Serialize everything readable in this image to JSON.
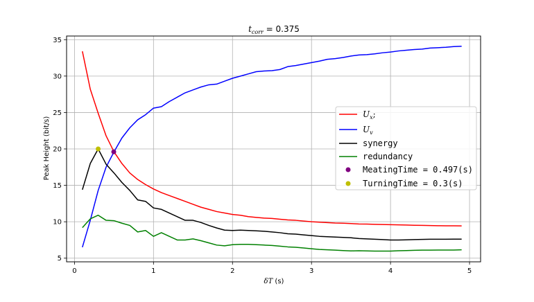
{
  "chart_data": {
    "type": "line",
    "title_prefix": "t",
    "title_sub": "corr",
    "title_suffix": " = 0.375",
    "xlabel_prefix": "δT",
    "xlabel_suffix": " (s)",
    "ylabel": "Peak Height (bit/s)",
    "xlim": [
      -0.1,
      5.14
    ],
    "ylim": [
      4.5,
      35.5
    ],
    "xticks": [
      0,
      1,
      2,
      3,
      4,
      5
    ],
    "yticks": [
      5,
      10,
      15,
      20,
      25,
      30,
      35
    ],
    "grid": true,
    "legend_position": "center-right",
    "x": [
      0.1,
      0.2,
      0.3,
      0.4,
      0.5,
      0.6,
      0.7,
      0.8,
      0.9,
      1.0,
      1.1,
      1.2,
      1.3,
      1.4,
      1.5,
      1.6,
      1.7,
      1.8,
      1.9,
      2.0,
      2.1,
      2.2,
      2.3,
      2.4,
      2.5,
      2.6,
      2.7,
      2.8,
      2.9,
      3.0,
      3.1,
      3.2,
      3.3,
      3.4,
      3.5,
      3.6,
      3.7,
      3.8,
      3.9,
      4.0,
      4.1,
      4.2,
      4.3,
      4.4,
      4.5,
      4.6,
      4.7,
      4.8,
      4.9
    ],
    "series": [
      {
        "name_base": "U",
        "name_sub": "x",
        "name_suffix": ";",
        "color": "#ff0000",
        "values": [
          33.4,
          28.2,
          24.9,
          21.8,
          19.6,
          18.0,
          16.7,
          15.8,
          15.1,
          14.5,
          14.0,
          13.6,
          13.2,
          12.8,
          12.4,
          12.0,
          11.7,
          11.4,
          11.2,
          11.0,
          10.9,
          10.7,
          10.6,
          10.5,
          10.45,
          10.35,
          10.25,
          10.2,
          10.1,
          10.0,
          9.95,
          9.88,
          9.82,
          9.8,
          9.75,
          9.7,
          9.68,
          9.65,
          9.62,
          9.6,
          9.57,
          9.55,
          9.52,
          9.5,
          9.48,
          9.46,
          9.45,
          9.44,
          9.43
        ]
      },
      {
        "name_base": "U",
        "name_sub": "v",
        "name_suffix": "",
        "color": "#0000ff",
        "values": [
          6.5,
          10.2,
          14.3,
          17.5,
          19.6,
          21.5,
          22.9,
          24.0,
          24.7,
          25.6,
          25.8,
          26.5,
          27.1,
          27.7,
          28.1,
          28.5,
          28.8,
          28.9,
          29.3,
          29.7,
          30.0,
          30.3,
          30.6,
          30.7,
          30.75,
          30.9,
          31.3,
          31.45,
          31.65,
          31.85,
          32.05,
          32.3,
          32.4,
          32.55,
          32.75,
          32.9,
          32.95,
          33.05,
          33.2,
          33.3,
          33.45,
          33.55,
          33.65,
          33.7,
          33.85,
          33.9,
          33.95,
          34.05,
          34.1
        ]
      },
      {
        "name": "synergy",
        "color": "#000000",
        "values": [
          14.4,
          18.0,
          20.0,
          17.9,
          16.7,
          15.4,
          14.3,
          13.0,
          12.8,
          11.9,
          11.7,
          11.2,
          10.7,
          10.2,
          10.2,
          9.9,
          9.5,
          9.15,
          8.85,
          8.8,
          8.85,
          8.8,
          8.75,
          8.7,
          8.6,
          8.5,
          8.35,
          8.3,
          8.2,
          8.1,
          8.0,
          7.95,
          7.9,
          7.85,
          7.8,
          7.7,
          7.65,
          7.6,
          7.55,
          7.5,
          7.5,
          7.52,
          7.55,
          7.58,
          7.6,
          7.6,
          7.6,
          7.62,
          7.62
        ]
      },
      {
        "name": "redundancy",
        "color": "#008000",
        "values": [
          9.2,
          10.4,
          10.9,
          10.2,
          10.15,
          9.8,
          9.5,
          8.6,
          8.8,
          8.0,
          8.5,
          8.0,
          7.5,
          7.5,
          7.65,
          7.4,
          7.1,
          6.8,
          6.7,
          6.85,
          6.9,
          6.9,
          6.85,
          6.8,
          6.75,
          6.65,
          6.55,
          6.5,
          6.4,
          6.3,
          6.2,
          6.15,
          6.1,
          6.05,
          6.0,
          6.02,
          6.0,
          5.98,
          5.98,
          5.98,
          6.02,
          6.05,
          6.08,
          6.1,
          6.1,
          6.12,
          6.12,
          6.12,
          6.15
        ]
      }
    ],
    "points": [
      {
        "name": "MeatingTime = 0.497(s)",
        "x": 0.497,
        "y": 19.6,
        "color": "#800080"
      },
      {
        "name": "TurningTime = 0.3(s)",
        "x": 0.3,
        "y": 20.0,
        "color": "#bfbf00"
      }
    ]
  }
}
